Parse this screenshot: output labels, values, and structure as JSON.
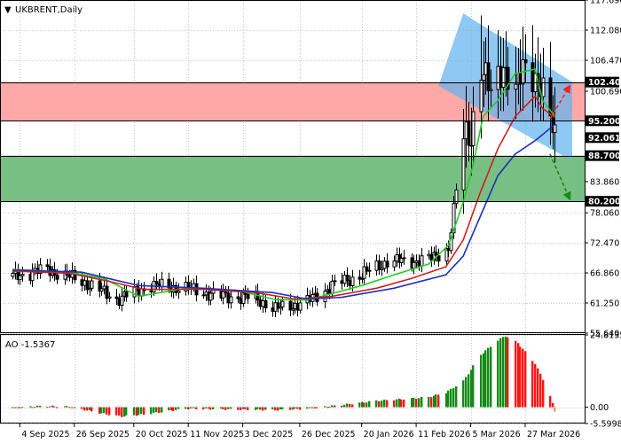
{
  "window": {
    "symbol_label": "UKBRENT,Daily",
    "symbol_arrow": "▼"
  },
  "colors": {
    "grid": "#c8c8c8",
    "frame": "#000000",
    "candle": "#000000",
    "ma_green": "#22cc22",
    "ma_red": "#cc1f1f",
    "ma_blue": "#1f2fbf",
    "zone_red": "#ffa8a8",
    "zone_green": "#78bf84",
    "channel": "#62b4f0",
    "ao_up": "#148a14",
    "ao_down": "#ff1212",
    "forecast_up": "#ff2020",
    "forecast_down": "#128c12",
    "last_marker": "#ff9060"
  },
  "chart_data": [
    {
      "type": "candlestick",
      "title": "UKBRENT,Daily",
      "ylim": [
        55.64,
        117.69
      ],
      "y_ticks": [
        "117.690",
        "112.080",
        "106.470",
        "100.690",
        "83.860",
        "78.060",
        "72.470",
        "66.860",
        "61.250",
        "55.640"
      ],
      "x_ticks": [
        "4 Sep 2025",
        "26 Sep 2025",
        "20 Oct 2025",
        "11 Nov 2025",
        "3 Dec 2025",
        "26 Dec 2025",
        "20 Jan 2026",
        "11 Feb 2026",
        "5 Mar 2026",
        "27 Mar 2026"
      ],
      "price_levels": [
        {
          "label": "102.400",
          "value": 102.4
        },
        {
          "label": "95.200",
          "value": 95.2
        },
        {
          "label": "88.700",
          "value": 88.7
        },
        {
          "label": "80.200",
          "value": 80.2
        }
      ],
      "current_price": {
        "label": "92.061",
        "value": 92.061
      },
      "zones": [
        {
          "name": "resistance-zone",
          "from": 95.2,
          "to": 102.4,
          "color": "#ffa8a8"
        },
        {
          "name": "support-zone",
          "from": 80.2,
          "to": 88.7,
          "color": "#78bf84"
        }
      ],
      "channel": {
        "upper": [
          [
            "2026-03-02",
            115.2
          ],
          [
            "2026-04-15",
            102.4
          ]
        ],
        "lower": [
          [
            "2026-02-20",
            101.7
          ],
          [
            "2026-04-15",
            87.7
          ]
        ]
      },
      "forecast_arrows": [
        {
          "name": "bullish-arrow",
          "from": [
            "2026-04-06",
            95.5
          ],
          "to": [
            "2026-04-14",
            101.7
          ]
        },
        {
          "name": "bearish-arrow",
          "from": [
            "2026-04-06",
            89.0
          ],
          "to": [
            "2026-04-14",
            80.6
          ]
        }
      ],
      "series": [
        {
          "name": "",
          "kind": "close",
          "x": [
            "2025-09-01",
            "2025-09-15",
            "2025-09-29",
            "2025-10-13",
            "2025-10-27",
            "2025-11-10",
            "2025-11-24",
            "2025-12-08",
            "2025-12-16",
            "2025-12-29",
            "2026-01-08",
            "2026-01-20",
            "2026-01-30",
            "2026-02-09",
            "2026-02-17",
            "2026-02-24",
            "2026-02-27",
            "2026-03-02",
            "2026-03-05",
            "2026-03-09",
            "2026-03-13",
            "2026-03-18",
            "2026-03-23",
            "2026-03-27",
            "2026-04-01",
            "2026-04-06",
            "2026-04-08"
          ],
          "y": [
            66.2,
            67.5,
            65.3,
            62.0,
            64.5,
            64.0,
            62.5,
            62.2,
            60.1,
            61.5,
            64.5,
            66.5,
            69.0,
            69.0,
            69.5,
            71.5,
            82.0,
            92.0,
            93.0,
            105.0,
            100.0,
            106.0,
            100.0,
            106.0,
            103.0,
            95.0,
            92.06
          ]
        },
        {
          "name": "",
          "kind": "ma",
          "color": "#22cc22",
          "x": [
            "2025-09-01",
            "2025-09-24",
            "2025-10-08",
            "2025-10-22",
            "2025-11-10",
            "2025-12-01",
            "2025-12-16",
            "2025-12-29",
            "2026-01-08",
            "2026-01-20",
            "2026-02-02",
            "2026-02-16",
            "2026-02-24",
            "2026-03-02",
            "2026-03-06",
            "2026-03-10",
            "2026-03-16",
            "2026-03-23",
            "2026-03-31",
            "2026-04-03",
            "2026-04-08"
          ],
          "y": [
            67.5,
            67.0,
            65.8,
            62.5,
            64.0,
            63.6,
            61.9,
            61.8,
            63.0,
            64.5,
            66.5,
            68.5,
            72.0,
            80.0,
            87.0,
            96.0,
            99.0,
            104.0,
            104.8,
            99.0,
            96.0
          ]
        },
        {
          "name": "",
          "kind": "ma",
          "color": "#cc1f1f",
          "x": [
            "2025-09-01",
            "2025-09-24",
            "2025-10-08",
            "2025-10-24",
            "2025-11-17",
            "2025-12-08",
            "2025-12-24",
            "2026-01-08",
            "2026-01-26",
            "2026-02-09",
            "2026-02-23",
            "2026-03-02",
            "2026-03-09",
            "2026-03-16",
            "2026-03-23",
            "2026-03-31",
            "2026-04-03",
            "2026-04-08"
          ],
          "y": [
            67.2,
            66.8,
            65.5,
            63.8,
            63.8,
            63.2,
            62.0,
            62.5,
            64.0,
            65.8,
            68.0,
            73.0,
            82.0,
            90.0,
            96.0,
            99.8,
            97.5,
            95.8
          ]
        },
        {
          "name": "",
          "kind": "ma",
          "color": "#1f2fbf",
          "x": [
            "2025-09-01",
            "2025-09-29",
            "2025-10-22",
            "2025-11-17",
            "2025-12-15",
            "2025-12-29",
            "2026-01-12",
            "2026-02-02",
            "2026-02-23",
            "2026-03-02",
            "2026-03-09",
            "2026-03-16",
            "2026-03-23",
            "2026-03-31",
            "2026-04-08"
          ],
          "y": [
            67.4,
            67.0,
            64.5,
            64.0,
            63.2,
            62.0,
            62.3,
            64.0,
            66.5,
            70.0,
            77.5,
            85.0,
            89.0,
            91.5,
            94.5
          ]
        }
      ]
    },
    {
      "type": "bar",
      "title": "AO -1.5367",
      "indicator": "AO",
      "last_value": -1.5367,
      "ylim": [
        -5.5998,
        24.8135
      ],
      "y_ticks": [
        "24.8135",
        "0.00",
        "-5.5998"
      ],
      "x_ticks": [
        "4 Sep 2025",
        "26 Sep 2025",
        "20 Oct 2025",
        "11 Nov 2025",
        "3 Dec 2025",
        "26 Dec 2025",
        "20 Jan 2026",
        "11 Feb 2026",
        "5 Mar 2026",
        "27 Mar 2026"
      ],
      "series": [
        {
          "name": "AO",
          "x": [
            "2025-09-01",
            "2025-09-12",
            "2025-09-24",
            "2025-10-06",
            "2025-10-15",
            "2025-10-24",
            "2025-11-10",
            "2025-12-01",
            "2025-12-16",
            "2025-12-29",
            "2026-01-12",
            "2026-01-26",
            "2026-02-09",
            "2026-02-16",
            "2026-02-23",
            "2026-03-02",
            "2026-03-09",
            "2026-03-16",
            "2026-03-19",
            "2026-03-24",
            "2026-03-31",
            "2026-04-06",
            "2026-04-08"
          ],
          "y": [
            -0.3,
            0.4,
            0.2,
            -2.0,
            -3.2,
            -2.5,
            -0.5,
            -0.8,
            -1.0,
            -0.5,
            0.8,
            2.2,
            3.0,
            3.5,
            5.0,
            9.0,
            18.0,
            23.0,
            24.5,
            22.0,
            15.0,
            4.0,
            -1.5367
          ]
        }
      ]
    }
  ]
}
